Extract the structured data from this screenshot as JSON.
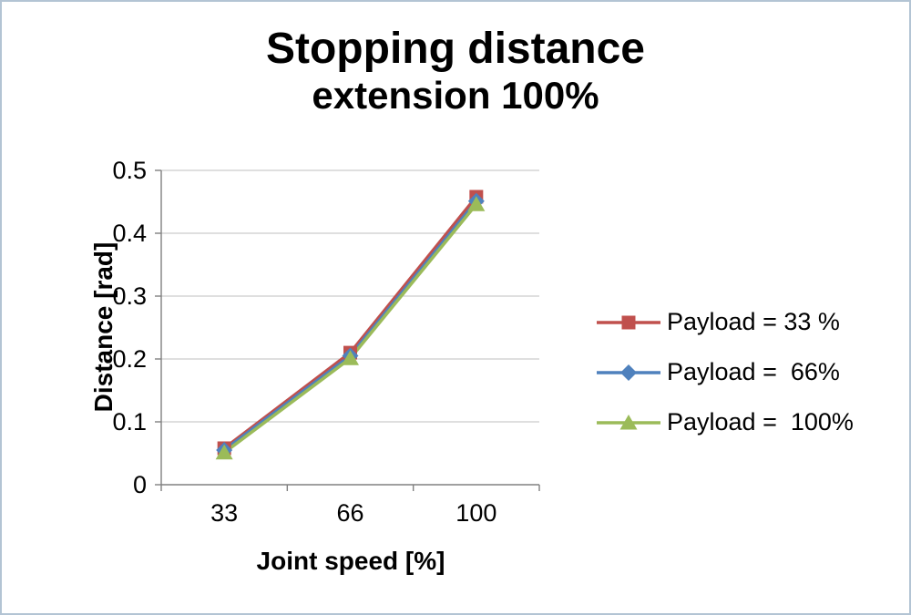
{
  "chart_data": {
    "type": "line",
    "title_line1": "Stopping distance",
    "title_line2": "extension 100%",
    "xlabel": "Joint speed [%]",
    "ylabel": "Distance [rad]",
    "categories": [
      "33",
      "66",
      "100"
    ],
    "series": [
      {
        "name": "Payload = 33 %",
        "color": "#c0504d",
        "marker": "square",
        "values": [
          0.058,
          0.21,
          0.458
        ]
      },
      {
        "name": "Payload =  66%",
        "color": "#4f81bd",
        "marker": "diamond",
        "values": [
          0.055,
          0.205,
          0.451
        ]
      },
      {
        "name": "Payload =  100%",
        "color": "#9bbb59",
        "marker": "triangle",
        "values": [
          0.051,
          0.201,
          0.446
        ]
      }
    ],
    "ylim": [
      0,
      0.5
    ],
    "yticks": [
      0,
      0.1,
      0.2,
      0.3,
      0.4,
      0.5
    ],
    "ytick_labels": [
      "0",
      "0.1",
      "0.2",
      "0.3",
      "0.4",
      "0.5"
    ],
    "grid": true,
    "legend_position": "right",
    "axis_color": "#808080",
    "grid_color": "#bfbfbf"
  }
}
